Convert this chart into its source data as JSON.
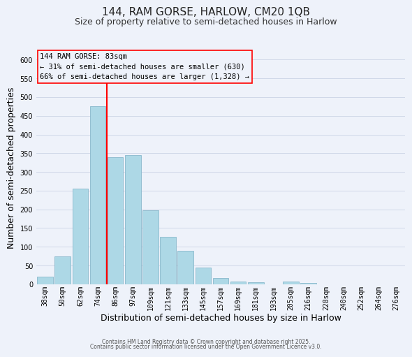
{
  "title": "144, RAM GORSE, HARLOW, CM20 1QB",
  "subtitle": "Size of property relative to semi-detached houses in Harlow",
  "xlabel": "Distribution of semi-detached houses by size in Harlow",
  "ylabel": "Number of semi-detached properties",
  "bar_labels": [
    "38sqm",
    "50sqm",
    "62sqm",
    "74sqm",
    "86sqm",
    "97sqm",
    "109sqm",
    "121sqm",
    "133sqm",
    "145sqm",
    "157sqm",
    "169sqm",
    "181sqm",
    "193sqm",
    "205sqm",
    "216sqm",
    "228sqm",
    "240sqm",
    "252sqm",
    "264sqm",
    "276sqm"
  ],
  "bar_values": [
    20,
    75,
    255,
    475,
    340,
    345,
    197,
    127,
    89,
    45,
    17,
    7,
    5,
    0,
    8,
    3,
    0,
    0,
    0,
    0,
    0
  ],
  "bar_color": "#add8e6",
  "bar_edge_color": "#8ab8cc",
  "grid_color": "#d0d8e8",
  "bg_color": "#eef2fa",
  "vline_color": "red",
  "annotation_text": "144 RAM GORSE: 83sqm\n← 31% of semi-detached houses are smaller (630)\n66% of semi-detached houses are larger (1,328) →",
  "annotation_box_color": "red",
  "ylim": [
    0,
    625
  ],
  "yticks": [
    0,
    50,
    100,
    150,
    200,
    250,
    300,
    350,
    400,
    450,
    500,
    550,
    600
  ],
  "footer1": "Contains HM Land Registry data © Crown copyright and database right 2025.",
  "footer2": "Contains public sector information licensed under the Open Government Licence v3.0.",
  "title_fontsize": 11,
  "subtitle_fontsize": 9,
  "tick_fontsize": 7,
  "label_fontsize": 9,
  "annotation_fontsize": 7.5
}
